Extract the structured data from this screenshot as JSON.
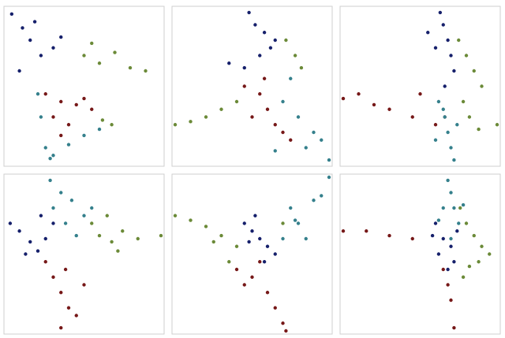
{
  "chart_data": [
    {
      "type": "scatter",
      "xlim": [
        0,
        100
      ],
      "ylim": [
        0,
        100
      ],
      "series": [
        {
          "color": "#16206b",
          "x": [
            3,
            10,
            15,
            22,
            30,
            8,
            18,
            35
          ],
          "values": [
            97,
            88,
            80,
            70,
            75,
            60,
            92,
            82
          ]
        },
        {
          "color": "#6b8a38",
          "x": [
            50,
            60,
            70,
            80,
            90,
            62,
            68,
            55
          ],
          "values": [
            70,
            65,
            72,
            62,
            60,
            28,
            25,
            78
          ]
        },
        {
          "color": "#761818",
          "x": [
            25,
            35,
            45,
            55,
            30,
            40,
            50,
            35
          ],
          "values": [
            45,
            40,
            38,
            35,
            30,
            25,
            42,
            18
          ]
        },
        {
          "color": "#35808c",
          "x": [
            20,
            22,
            25,
            30,
            40,
            50,
            28,
            60
          ],
          "values": [
            45,
            30,
            10,
            5,
            12,
            18,
            3,
            22
          ]
        }
      ]
    },
    {
      "type": "scatter",
      "xlim": [
        0,
        100
      ],
      "ylim": [
        0,
        100
      ],
      "series": [
        {
          "color": "#16206b",
          "x": [
            48,
            52,
            58,
            62,
            55,
            45,
            35,
            65
          ],
          "values": [
            98,
            90,
            85,
            75,
            70,
            62,
            65,
            80
          ]
        },
        {
          "color": "#6b8a38",
          "x": [
            0,
            10,
            20,
            30,
            40,
            72,
            78,
            82
          ],
          "values": [
            25,
            27,
            30,
            35,
            40,
            80,
            70,
            62
          ]
        },
        {
          "color": "#761818",
          "x": [
            45,
            55,
            60,
            65,
            70,
            75,
            58,
            50
          ],
          "values": [
            50,
            45,
            35,
            25,
            20,
            15,
            55,
            30
          ]
        },
        {
          "color": "#35808c",
          "x": [
            70,
            80,
            90,
            100,
            85,
            75,
            95,
            65
          ],
          "values": [
            40,
            30,
            20,
            2,
            10,
            55,
            15,
            8
          ]
        }
      ]
    },
    {
      "type": "scatter",
      "xlim": [
        0,
        100
      ],
      "ylim": [
        0,
        100
      ],
      "series": [
        {
          "color": "#16206b",
          "x": [
            63,
            65,
            68,
            70,
            72,
            66,
            60,
            55
          ],
          "values": [
            98,
            90,
            80,
            70,
            60,
            50,
            75,
            85
          ]
        },
        {
          "color": "#6b8a38",
          "x": [
            75,
            80,
            85,
            90,
            100,
            78,
            82,
            88
          ],
          "values": [
            80,
            70,
            60,
            50,
            25,
            40,
            30,
            22
          ]
        },
        {
          "color": "#761818",
          "x": [
            0,
            10,
            20,
            30,
            45,
            60,
            66,
            50
          ],
          "values": [
            42,
            45,
            38,
            35,
            30,
            25,
            30,
            45
          ]
        },
        {
          "color": "#35808c",
          "x": [
            62,
            66,
            68,
            70,
            72,
            65,
            60,
            74
          ],
          "values": [
            40,
            30,
            20,
            10,
            2,
            35,
            15,
            25
          ]
        }
      ]
    },
    {
      "type": "scatter",
      "xlim": [
        0,
        100
      ],
      "ylim": [
        0,
        100
      ],
      "series": [
        {
          "color": "#16206b",
          "x": [
            2,
            8,
            15,
            20,
            25,
            30,
            12,
            22
          ],
          "values": [
            70,
            65,
            58,
            52,
            60,
            70,
            50,
            75
          ]
        },
        {
          "color": "#35808c",
          "x": [
            28,
            35,
            42,
            50,
            30,
            38,
            45,
            55
          ],
          "values": [
            98,
            90,
            85,
            75,
            80,
            70,
            62,
            80
          ]
        },
        {
          "color": "#6b8a38",
          "x": [
            55,
            60,
            68,
            75,
            85,
            100,
            65,
            72
          ],
          "values": [
            70,
            62,
            58,
            65,
            60,
            62,
            75,
            52
          ]
        },
        {
          "color": "#761818",
          "x": [
            25,
            30,
            35,
            40,
            45,
            50,
            35,
            38
          ],
          "values": [
            45,
            35,
            25,
            15,
            10,
            30,
            2,
            40
          ]
        }
      ]
    },
    {
      "type": "scatter",
      "xlim": [
        0,
        100
      ],
      "ylim": [
        0,
        100
      ],
      "series": [
        {
          "color": "#16206b",
          "x": [
            45,
            50,
            55,
            60,
            65,
            52,
            58,
            48
          ],
          "values": [
            70,
            65,
            60,
            55,
            50,
            75,
            45,
            58
          ]
        },
        {
          "color": "#6b8a38",
          "x": [
            0,
            10,
            20,
            30,
            40,
            35,
            25,
            70
          ],
          "values": [
            75,
            72,
            68,
            62,
            55,
            45,
            58,
            70
          ]
        },
        {
          "color": "#761818",
          "x": [
            40,
            50,
            60,
            65,
            70,
            72,
            55,
            45
          ],
          "values": [
            40,
            35,
            25,
            15,
            5,
            0,
            45,
            30
          ]
        },
        {
          "color": "#35808c",
          "x": [
            70,
            80,
            90,
            100,
            75,
            85,
            95,
            78
          ],
          "values": [
            60,
            70,
            85,
            100,
            80,
            60,
            88,
            72
          ]
        }
      ]
    },
    {
      "type": "scatter",
      "xlim": [
        0,
        100
      ],
      "ylim": [
        0,
        100
      ],
      "series": [
        {
          "color": "#16206b",
          "x": [
            60,
            65,
            70,
            72,
            68,
            62,
            58,
            74
          ],
          "values": [
            70,
            60,
            55,
            45,
            40,
            50,
            62,
            65
          ]
        },
        {
          "color": "#35808c",
          "x": [
            68,
            70,
            72,
            75,
            65,
            78,
            62,
            70
          ],
          "values": [
            98,
            90,
            80,
            70,
            80,
            82,
            72,
            60
          ]
        },
        {
          "color": "#6b8a38",
          "x": [
            76,
            80,
            85,
            90,
            95,
            82,
            88,
            78
          ],
          "values": [
            80,
            70,
            62,
            55,
            50,
            42,
            45,
            35
          ]
        },
        {
          "color": "#761818",
          "x": [
            0,
            15,
            30,
            45,
            65,
            70,
            72,
            68
          ],
          "values": [
            65,
            65,
            62,
            60,
            40,
            20,
            2,
            30
          ]
        }
      ]
    }
  ]
}
